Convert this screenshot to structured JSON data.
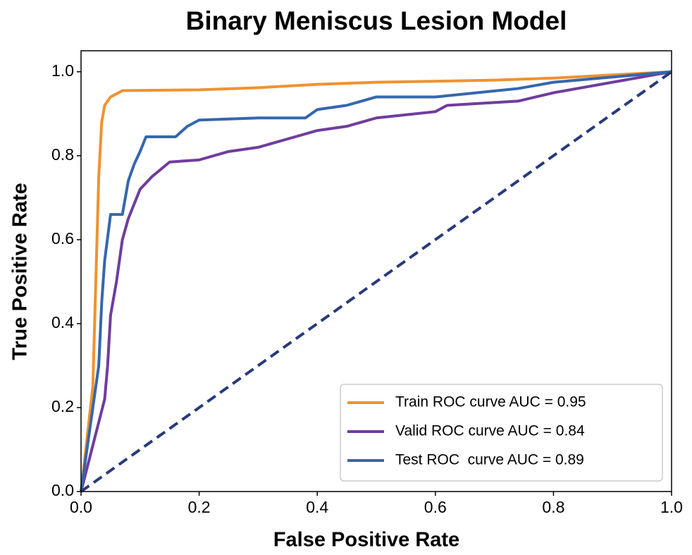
{
  "chart_data": {
    "type": "line",
    "title": "Binary Meniscus Lesion Model",
    "x_label": "False Positive Rate",
    "y_label": "True Positive Rate",
    "xlim": [
      0,
      1
    ],
    "ylim": [
      0,
      1.05
    ],
    "xticks": [
      {
        "value": 0,
        "label": "0.0"
      },
      0.2,
      0.4,
      0.6,
      0.8,
      {
        "value": 1,
        "label": "1.0"
      }
    ],
    "yticks": [
      {
        "value": 0,
        "label": "0.0"
      },
      0.2,
      0.4,
      0.6,
      0.8,
      {
        "value": 1,
        "label": "1.0"
      }
    ],
    "legend": "lower right",
    "series": [
      {
        "name": "Train ROC curve AUC = 0.95",
        "color": "#f0922f",
        "x": [
          0,
          0.02,
          0.025,
          0.03,
          0.035,
          0.04,
          0.05,
          0.07,
          0.2,
          0.3,
          0.4,
          0.5,
          0.7,
          0.8,
          1
        ],
        "values": [
          0,
          0.25,
          0.5,
          0.75,
          0.88,
          0.92,
          0.94,
          0.955,
          0.957,
          0.962,
          0.97,
          0.975,
          0.98,
          0.985,
          1
        ]
      },
      {
        "name": "Valid ROC curve AUC = 0.84",
        "color": "#6f3d9e",
        "x": [
          0,
          0.04,
          0.045,
          0.05,
          0.06,
          0.07,
          0.08,
          0.1,
          0.12,
          0.15,
          0.2,
          0.25,
          0.3,
          0.35,
          0.4,
          0.45,
          0.5,
          0.6,
          0.62,
          0.74,
          0.8,
          1
        ],
        "values": [
          0,
          0.22,
          0.3,
          0.42,
          0.5,
          0.6,
          0.65,
          0.72,
          0.75,
          0.785,
          0.79,
          0.81,
          0.82,
          0.84,
          0.86,
          0.87,
          0.89,
          0.905,
          0.92,
          0.93,
          0.95,
          1
        ]
      },
      {
        "name": "Test ROC  curve AUC = 0.89",
        "color": "#3567ad",
        "x": [
          0,
          0.03,
          0.035,
          0.04,
          0.05,
          0.07,
          0.08,
          0.09,
          0.1,
          0.11,
          0.16,
          0.18,
          0.2,
          0.3,
          0.38,
          0.4,
          0.45,
          0.5,
          0.6,
          0.74,
          0.8,
          1
        ],
        "values": [
          0,
          0.3,
          0.45,
          0.55,
          0.66,
          0.66,
          0.74,
          0.78,
          0.81,
          0.845,
          0.845,
          0.87,
          0.885,
          0.89,
          0.89,
          0.91,
          0.92,
          0.94,
          0.94,
          0.96,
          0.975,
          1
        ]
      }
    ],
    "diagonal": {
      "x": [
        0,
        1
      ],
      "values": [
        0,
        1
      ],
      "color": "#283a7c"
    }
  }
}
